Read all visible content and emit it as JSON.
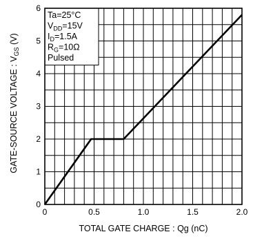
{
  "chart_data": {
    "type": "line",
    "xlabel": "TOTAL  GATE  CHARGE : Qg (nC)",
    "ylabel": "GATE-SOURCE  VOLTAGE : VGS (V)",
    "ylabel_main": "GATE-SOURCE  VOLTAGE : V",
    "ylabel_sub": "GS",
    "ylabel_unit": " (V)",
    "xlim": [
      0,
      2.0
    ],
    "ylim": [
      0,
      6
    ],
    "x_ticks": [
      "0",
      "0.5",
      "1.0",
      "1.5",
      "2.0"
    ],
    "y_ticks": [
      "0",
      "1",
      "2",
      "3",
      "4",
      "5",
      "6"
    ],
    "grid": true,
    "conditions": [
      {
        "main": "Ta=25°C",
        "sub": "",
        "rest": ""
      },
      {
        "main": "V",
        "sub": "DD",
        "rest": "=15V"
      },
      {
        "main": "I",
        "sub": "D",
        "rest": "=1.5A"
      },
      {
        "main": "R",
        "sub": "G",
        "rest": "=10Ω"
      },
      {
        "main": "Pulsed",
        "sub": "",
        "rest": ""
      }
    ],
    "series": [
      {
        "x": [
          0,
          0.47,
          0.8,
          2.0
        ],
        "y": [
          0,
          2,
          2,
          5.8
        ]
      }
    ]
  },
  "colors": {
    "line": "#000000",
    "grid": "#000000",
    "background": "#ffffff"
  }
}
